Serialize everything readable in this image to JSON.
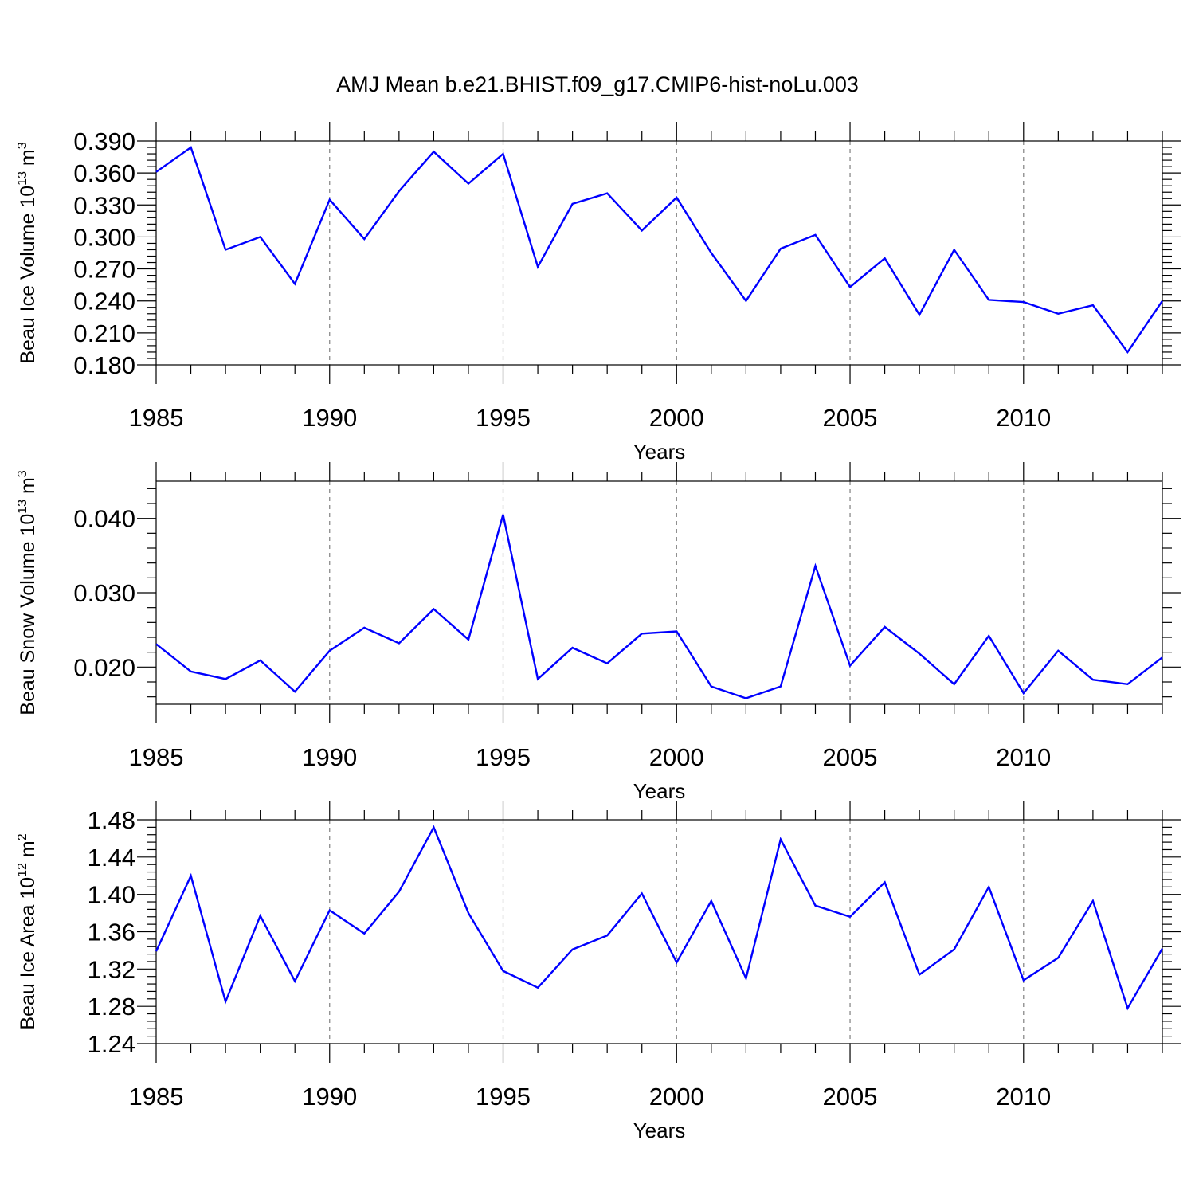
{
  "title": "AMJ Mean b.e21.BHIST.f09_g17.CMIP6-hist-noLu.003",
  "colors": {
    "line": "#0000ff",
    "axis": "#000000",
    "grid": "#808080"
  },
  "chart_data": [
    {
      "type": "line",
      "xlabel": "Years",
      "ylabel": {
        "text": "Beau Ice Volume 10",
        "exponent": "13",
        "unit": " m",
        "unit_exp": "3"
      },
      "xlim": [
        1985,
        2014
      ],
      "ylim": [
        0.18,
        0.39
      ],
      "x_ticks": [
        1985,
        1990,
        1995,
        2000,
        2005,
        2010
      ],
      "x_tick_labels": [
        "1985",
        "1990",
        "1995",
        "2000",
        "2005",
        "2010"
      ],
      "y_ticks": [
        0.18,
        0.21,
        0.24,
        0.27,
        0.3,
        0.33,
        0.36,
        0.39
      ],
      "y_tick_labels": [
        "0.180",
        "0.210",
        "0.240",
        "0.270",
        "0.300",
        "0.330",
        "0.360",
        "0.390"
      ],
      "grid": "vertical dashed at major x ticks",
      "x": [
        1985,
        1986,
        1987,
        1988,
        1989,
        1990,
        1991,
        1992,
        1993,
        1994,
        1995,
        1996,
        1997,
        1998,
        1999,
        2000,
        2001,
        2002,
        2003,
        2004,
        2005,
        2006,
        2007,
        2008,
        2009,
        2010,
        2011,
        2012,
        2013,
        2014
      ],
      "series": [
        {
          "values": [
            0.361,
            0.384,
            0.288,
            0.3,
            0.256,
            0.335,
            0.298,
            0.343,
            0.38,
            0.35,
            0.378,
            0.272,
            0.331,
            0.341,
            0.306,
            0.337,
            0.285,
            0.24,
            0.289,
            0.302,
            0.253,
            0.28,
            0.227,
            0.288,
            0.241,
            0.239,
            0.228,
            0.236,
            0.192,
            0.24
          ]
        }
      ]
    },
    {
      "type": "line",
      "xlabel": "Years",
      "ylabel": {
        "text": "Beau Snow Volume 10",
        "exponent": "13",
        "unit": " m",
        "unit_exp": "3"
      },
      "xlim": [
        1985,
        2014
      ],
      "ylim": [
        0.015,
        0.045
      ],
      "x_ticks": [
        1985,
        1990,
        1995,
        2000,
        2005,
        2010
      ],
      "x_tick_labels": [
        "1985",
        "1990",
        "1995",
        "2000",
        "2005",
        "2010"
      ],
      "y_ticks": [
        0.02,
        0.03,
        0.04
      ],
      "y_tick_labels": [
        "0.020",
        "0.030",
        "0.040"
      ],
      "grid": "vertical dashed at major x ticks",
      "x": [
        1985,
        1986,
        1987,
        1988,
        1989,
        1990,
        1991,
        1992,
        1993,
        1994,
        1995,
        1996,
        1997,
        1998,
        1999,
        2000,
        2001,
        2002,
        2003,
        2004,
        2005,
        2006,
        2007,
        2008,
        2009,
        2010,
        2011,
        2012,
        2013,
        2014
      ],
      "series": [
        {
          "values": [
            0.0231,
            0.0194,
            0.0184,
            0.0209,
            0.0167,
            0.0222,
            0.0253,
            0.0232,
            0.0278,
            0.0237,
            0.0405,
            0.0184,
            0.0226,
            0.0205,
            0.0245,
            0.0248,
            0.0174,
            0.0158,
            0.0174,
            0.0336,
            0.0202,
            0.0254,
            0.0218,
            0.0177,
            0.0242,
            0.0165,
            0.0222,
            0.0183,
            0.0177,
            0.0213
          ]
        }
      ]
    },
    {
      "type": "line",
      "xlabel": "Years",
      "ylabel": {
        "text": "Beau Ice Area 10",
        "exponent": "12",
        "unit": " m",
        "unit_exp": "2"
      },
      "xlim": [
        1985,
        2014
      ],
      "ylim": [
        1.24,
        1.48
      ],
      "x_ticks": [
        1985,
        1990,
        1995,
        2000,
        2005,
        2010
      ],
      "x_tick_labels": [
        "1985",
        "1990",
        "1995",
        "2000",
        "2005",
        "2010"
      ],
      "y_ticks": [
        1.24,
        1.28,
        1.32,
        1.36,
        1.4,
        1.44,
        1.48
      ],
      "y_tick_labels": [
        "1.24",
        "1.28",
        "1.32",
        "1.36",
        "1.40",
        "1.44",
        "1.48"
      ],
      "grid": "vertical dashed at major x ticks",
      "x": [
        1985,
        1986,
        1987,
        1988,
        1989,
        1990,
        1991,
        1992,
        1993,
        1994,
        1995,
        1996,
        1997,
        1998,
        1999,
        2000,
        2001,
        2002,
        2003,
        2004,
        2005,
        2006,
        2007,
        2008,
        2009,
        2010,
        2011,
        2012,
        2013,
        2014
      ],
      "series": [
        {
          "values": [
            1.339,
            1.42,
            1.285,
            1.377,
            1.307,
            1.383,
            1.358,
            1.403,
            1.472,
            1.38,
            1.318,
            1.3,
            1.341,
            1.356,
            1.401,
            1.327,
            1.393,
            1.31,
            1.459,
            1.388,
            1.376,
            1.413,
            1.314,
            1.341,
            1.408,
            1.308,
            1.332,
            1.393,
            1.278,
            1.342
          ]
        }
      ]
    }
  ]
}
